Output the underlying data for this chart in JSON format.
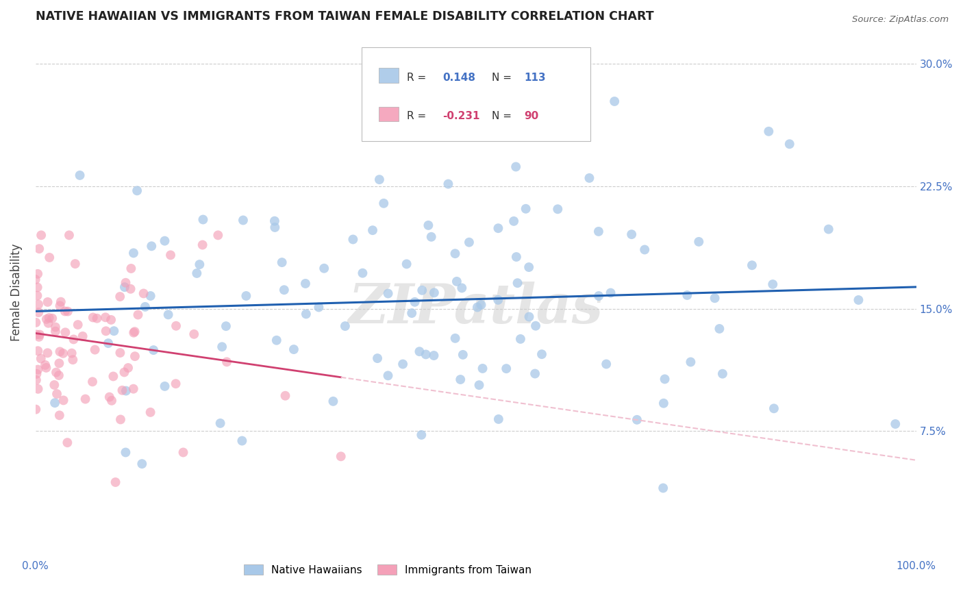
{
  "title": "NATIVE HAWAIIAN VS IMMIGRANTS FROM TAIWAN FEMALE DISABILITY CORRELATION CHART",
  "source": "Source: ZipAtlas.com",
  "ylabel": "Female Disability",
  "xlim": [
    0,
    1.0
  ],
  "ylim": [
    0,
    0.32
  ],
  "yticks": [
    0.075,
    0.15,
    0.225,
    0.3
  ],
  "ytick_labels": [
    "7.5%",
    "15.0%",
    "22.5%",
    "30.0%"
  ],
  "blue_R": 0.148,
  "blue_N": 113,
  "pink_R": -0.231,
  "pink_N": 90,
  "blue_color": "#a8c8e8",
  "pink_color": "#f4a0b8",
  "blue_line_color": "#2060b0",
  "pink_line_color": "#d04070",
  "pink_dash_color": "#f0c0d0",
  "watermark": "ZIPatlas",
  "background_color": "#ffffff",
  "grid_color": "#cccccc",
  "axis_color": "#4472c4",
  "blue_seed": 12,
  "pink_seed": 99,
  "legend_blue_label": "Native Hawaiians",
  "legend_pink_label": "Immigrants from Taiwan"
}
